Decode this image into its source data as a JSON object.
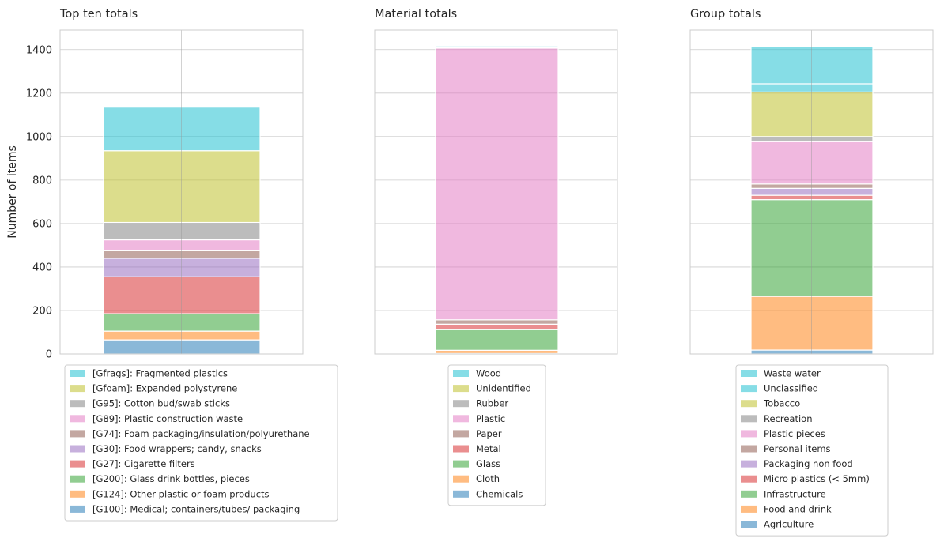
{
  "ylabel": "Number of items",
  "colors": {
    "tab_blue": "#1f77b4",
    "tab_orange": "#ff7f0e",
    "tab_green": "#2ca02c",
    "tab_red": "#d62728",
    "tab_purple": "#9467bd",
    "tab_brown": "#8c564b",
    "tab_pink": "#e377c2",
    "tab_gray": "#7f7f7f",
    "tab_olive": "#bcbd22",
    "tab_cyan": "#17becf",
    "grid": "#cccccc",
    "text": "#262626"
  },
  "chart_data": [
    {
      "type": "bar",
      "stacked": true,
      "title": "Top ten totals",
      "ylabel": "Number of items",
      "ylim": [
        0,
        1490
      ],
      "yticks": [
        0,
        200,
        400,
        600,
        800,
        1000,
        1200,
        1400
      ],
      "grid": true,
      "legend_position": "bottom",
      "series": [
        {
          "name": "[G100]: Medical; containers/tubes/ packaging",
          "value": 65,
          "color": "tab_blue"
        },
        {
          "name": "[G124]: Other plastic or foam products",
          "value": 40,
          "color": "tab_orange"
        },
        {
          "name": "[G200]: Glass drink bottles, pieces",
          "value": 80,
          "color": "tab_green"
        },
        {
          "name": "[G27]: Cigarette filters",
          "value": 170,
          "color": "tab_red"
        },
        {
          "name": "[G30]: Food wrappers; candy, snacks",
          "value": 85,
          "color": "tab_purple"
        },
        {
          "name": "[G74]: Foam packaging/insulation/polyurethane",
          "value": 35,
          "color": "tab_brown"
        },
        {
          "name": "[G89]: Plastic construction waste",
          "value": 50,
          "color": "tab_pink"
        },
        {
          "name": "[G95]: Cotton bud/swab sticks",
          "value": 80,
          "color": "tab_gray"
        },
        {
          "name": "[Gfoam]: Expanded polystyrene",
          "value": 330,
          "color": "tab_olive"
        },
        {
          "name": "[Gfrags]: Fragmented plastics",
          "value": 200,
          "color": "tab_cyan"
        }
      ]
    },
    {
      "type": "bar",
      "stacked": true,
      "title": "Material totals",
      "ylim": [
        0,
        1490
      ],
      "yticks": [
        0,
        200,
        400,
        600,
        800,
        1000,
        1200,
        1400
      ],
      "grid": true,
      "legend_position": "bottom",
      "series": [
        {
          "name": "Chemicals",
          "value": 2,
          "color": "tab_blue"
        },
        {
          "name": "Cloth",
          "value": 15,
          "color": "tab_orange"
        },
        {
          "name": "Glass",
          "value": 95,
          "color": "tab_green"
        },
        {
          "name": "Metal",
          "value": 25,
          "color": "tab_red"
        },
        {
          "name": "Paper",
          "value": 20,
          "color": "tab_brown"
        },
        {
          "name": "Plastic",
          "value": 1250,
          "color": "tab_pink"
        },
        {
          "name": "Rubber",
          "value": 3,
          "color": "tab_gray"
        },
        {
          "name": "Unidentified",
          "value": 2,
          "color": "tab_olive"
        },
        {
          "name": "Wood",
          "value": 5,
          "color": "tab_cyan"
        }
      ]
    },
    {
      "type": "bar",
      "stacked": true,
      "title": "Group totals",
      "ylim": [
        0,
        1490
      ],
      "yticks": [
        0,
        200,
        400,
        600,
        800,
        1000,
        1200,
        1400
      ],
      "grid": true,
      "legend_position": "bottom",
      "series": [
        {
          "name": "Agriculture",
          "value": 18,
          "color": "tab_blue"
        },
        {
          "name": "Food and drink",
          "value": 247,
          "color": "tab_orange"
        },
        {
          "name": "Infrastructure",
          "value": 445,
          "color": "tab_green"
        },
        {
          "name": "Micro plastics (< 5mm)",
          "value": 20,
          "color": "tab_red"
        },
        {
          "name": "Packaging non food",
          "value": 32,
          "color": "tab_purple"
        },
        {
          "name": "Personal items",
          "value": 20,
          "color": "tab_brown"
        },
        {
          "name": "Plastic pieces",
          "value": 195,
          "color": "tab_pink"
        },
        {
          "name": "Recreation",
          "value": 23,
          "color": "tab_gray"
        },
        {
          "name": "Tobacco",
          "value": 205,
          "color": "tab_olive"
        },
        {
          "name": "Unclassified",
          "value": 38,
          "color": "tab_cyan"
        },
        {
          "name": "Waste water",
          "value": 170,
          "color": "tab_cyan"
        }
      ]
    }
  ]
}
